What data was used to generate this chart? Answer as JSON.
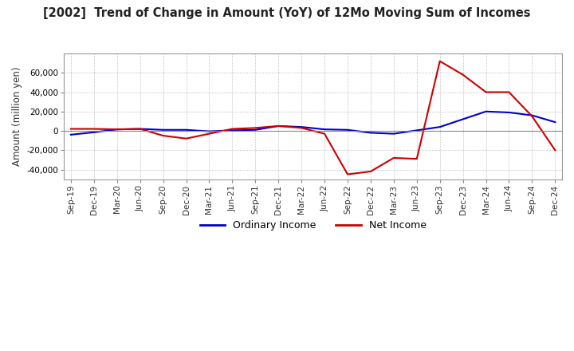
{
  "title": "[2002]  Trend of Change in Amount (YoY) of 12Mo Moving Sum of Incomes",
  "ylabel": "Amount (million yen)",
  "ylim": [
    -50000,
    80000
  ],
  "yticks": [
    -40000,
    -20000,
    0,
    20000,
    40000,
    60000
  ],
  "background_color": "#ffffff",
  "grid_color": "#aaaaaa",
  "dates": [
    "Sep-19",
    "Dec-19",
    "Mar-20",
    "Jun-20",
    "Sep-20",
    "Dec-20",
    "Mar-21",
    "Jun-21",
    "Sep-21",
    "Dec-21",
    "Mar-22",
    "Jun-22",
    "Sep-22",
    "Dec-22",
    "Mar-23",
    "Jun-23",
    "Sep-23",
    "Dec-23",
    "Mar-24",
    "Jun-24",
    "Sep-24",
    "Dec-24"
  ],
  "ordinary_income": [
    -4000,
    -1500,
    1500,
    2000,
    1000,
    1000,
    -500,
    500,
    1000,
    5000,
    4000,
    1500,
    1000,
    -2000,
    -3000,
    500,
    4000,
    12000,
    20000,
    19000,
    16000,
    9000
  ],
  "net_income": [
    2000,
    2000,
    1500,
    2000,
    -5000,
    -8000,
    -3000,
    2000,
    3000,
    5000,
    3000,
    -3000,
    -45000,
    -42000,
    -28000,
    -29000,
    72000,
    58000,
    40000,
    40000,
    15000,
    -20000
  ],
  "ordinary_color": "#0000cc",
  "net_color": "#cc0000",
  "line_width": 1.5
}
